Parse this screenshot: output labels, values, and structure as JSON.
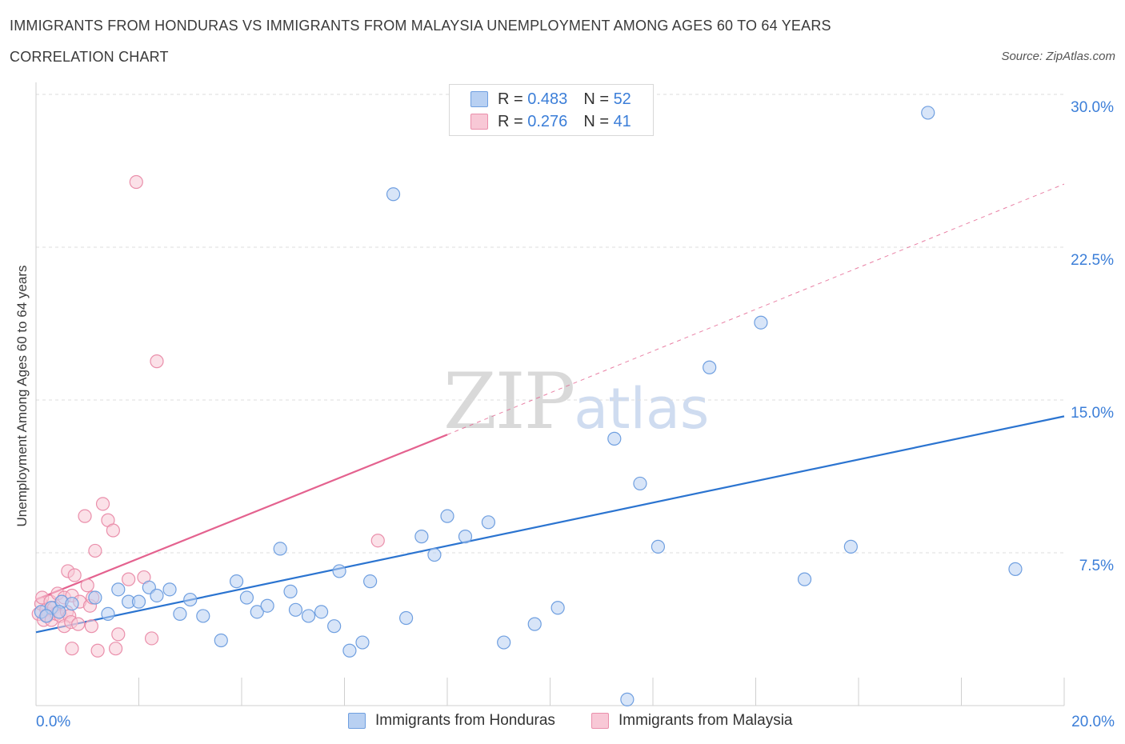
{
  "header": {
    "title": "IMMIGRANTS FROM HONDURAS VS IMMIGRANTS FROM MALAYSIA UNEMPLOYMENT AMONG AGES 60 TO 64 YEARS",
    "subtitle": "CORRELATION CHART",
    "source": "Source: ZipAtlas.com"
  },
  "watermark": {
    "zip": "ZIP",
    "atlas": "atlas"
  },
  "legend_top": {
    "r_label": "R =",
    "n_label": "N =",
    "series_a": {
      "r": "0.483",
      "n": "52"
    },
    "series_b": {
      "r": "0.276",
      "n": "41"
    }
  },
  "colors": {
    "honduras_fill": "#b8d0f2",
    "honduras_stroke": "#6f9fe0",
    "honduras_line": "#2b74d0",
    "malaysia_fill": "#f8c8d6",
    "malaysia_stroke": "#ea8fab",
    "malaysia_line": "#e4628f",
    "axis_text": "#3b7ed8",
    "grid": "#dcdcdc"
  },
  "chart_data": {
    "type": "scatter",
    "title": "IMMIGRANTS FROM HONDURAS VS IMMIGRANTS FROM MALAYSIA UNEMPLOYMENT AMONG AGES 60 TO 64 YEARS",
    "xlabel": "",
    "ylabel": "Unemployment Among Ages 60 to 64 years",
    "xlim": [
      0,
      20
    ],
    "ylim": [
      0,
      30
    ],
    "x_tick_labels": [
      "0.0%",
      "20.0%"
    ],
    "y_ticks": [
      7.5,
      15,
      22.5,
      30
    ],
    "y_tick_labels": [
      "7.5%",
      "15.0%",
      "22.5%",
      "30.0%"
    ],
    "grid": true,
    "legend_position": "bottom",
    "series": [
      {
        "name": "Immigrants from Honduras",
        "points": [
          [
            0.1,
            4.6
          ],
          [
            0.3,
            4.8
          ],
          [
            0.5,
            5.1
          ],
          [
            0.7,
            5.0
          ],
          [
            1.15,
            5.3
          ],
          [
            1.4,
            4.5
          ],
          [
            1.6,
            5.7
          ],
          [
            1.8,
            5.1
          ],
          [
            2.0,
            5.1
          ],
          [
            2.2,
            5.8
          ],
          [
            2.35,
            5.4
          ],
          [
            2.6,
            5.7
          ],
          [
            2.8,
            4.5
          ],
          [
            3.0,
            5.2
          ],
          [
            3.25,
            4.4
          ],
          [
            3.6,
            3.2
          ],
          [
            3.9,
            6.1
          ],
          [
            4.1,
            5.3
          ],
          [
            4.3,
            4.6
          ],
          [
            4.5,
            4.9
          ],
          [
            4.75,
            7.7
          ],
          [
            4.95,
            5.6
          ],
          [
            5.05,
            4.7
          ],
          [
            5.3,
            4.4
          ],
          [
            5.55,
            4.6
          ],
          [
            5.8,
            3.9
          ],
          [
            5.9,
            6.6
          ],
          [
            6.1,
            2.7
          ],
          [
            6.35,
            3.1
          ],
          [
            6.5,
            6.1
          ],
          [
            6.95,
            25.1
          ],
          [
            7.2,
            4.3
          ],
          [
            7.5,
            8.3
          ],
          [
            7.75,
            7.4
          ],
          [
            8.0,
            9.3
          ],
          [
            8.35,
            8.3
          ],
          [
            8.8,
            9.0
          ],
          [
            9.1,
            3.1
          ],
          [
            9.7,
            4.0
          ],
          [
            10.15,
            4.8
          ],
          [
            11.25,
            13.1
          ],
          [
            11.5,
            0.3
          ],
          [
            11.75,
            10.9
          ],
          [
            12.1,
            7.8
          ],
          [
            13.1,
            16.6
          ],
          [
            14.1,
            18.8
          ],
          [
            14.95,
            6.2
          ],
          [
            15.85,
            7.8
          ],
          [
            17.35,
            29.1
          ],
          [
            19.05,
            6.7
          ],
          [
            0.2,
            4.4
          ],
          [
            0.45,
            4.6
          ]
        ],
        "trendline": {
          "x": [
            0,
            20
          ],
          "y": [
            3.6,
            14.2
          ]
        }
      },
      {
        "name": "Immigrants from Malaysia",
        "points": [
          [
            0.05,
            4.5
          ],
          [
            0.1,
            5.0
          ],
          [
            0.12,
            5.3
          ],
          [
            0.15,
            4.2
          ],
          [
            0.2,
            4.7
          ],
          [
            0.22,
            4.4
          ],
          [
            0.28,
            5.1
          ],
          [
            0.3,
            4.2
          ],
          [
            0.35,
            4.8
          ],
          [
            0.4,
            4.5
          ],
          [
            0.42,
            5.5
          ],
          [
            0.48,
            4.4
          ],
          [
            0.55,
            5.3
          ],
          [
            0.6,
            4.6
          ],
          [
            0.65,
            4.4
          ],
          [
            0.7,
            5.4
          ],
          [
            0.55,
            3.9
          ],
          [
            0.62,
            6.6
          ],
          [
            0.68,
            4.1
          ],
          [
            0.7,
            2.8
          ],
          [
            0.75,
            6.4
          ],
          [
            0.82,
            4.0
          ],
          [
            0.85,
            5.1
          ],
          [
            0.95,
            9.3
          ],
          [
            1.0,
            5.9
          ],
          [
            1.05,
            4.9
          ],
          [
            1.08,
            3.9
          ],
          [
            1.1,
            5.3
          ],
          [
            1.15,
            7.6
          ],
          [
            1.2,
            2.7
          ],
          [
            1.3,
            9.9
          ],
          [
            1.4,
            9.1
          ],
          [
            1.5,
            8.6
          ],
          [
            1.55,
            2.8
          ],
          [
            1.6,
            3.5
          ],
          [
            1.8,
            6.2
          ],
          [
            1.95,
            25.7
          ],
          [
            2.1,
            6.3
          ],
          [
            2.25,
            3.3
          ],
          [
            2.35,
            16.9
          ],
          [
            6.65,
            8.1
          ]
        ],
        "trendline": {
          "x": [
            0,
            8.0
          ],
          "y": [
            5.2,
            13.3
          ]
        },
        "trendline_extension": {
          "x": [
            8.0,
            20
          ],
          "y": [
            13.3,
            25.6
          ]
        }
      }
    ]
  },
  "legend_bottom": {
    "a": "Immigrants from Honduras",
    "b": "Immigrants from Malaysia"
  }
}
